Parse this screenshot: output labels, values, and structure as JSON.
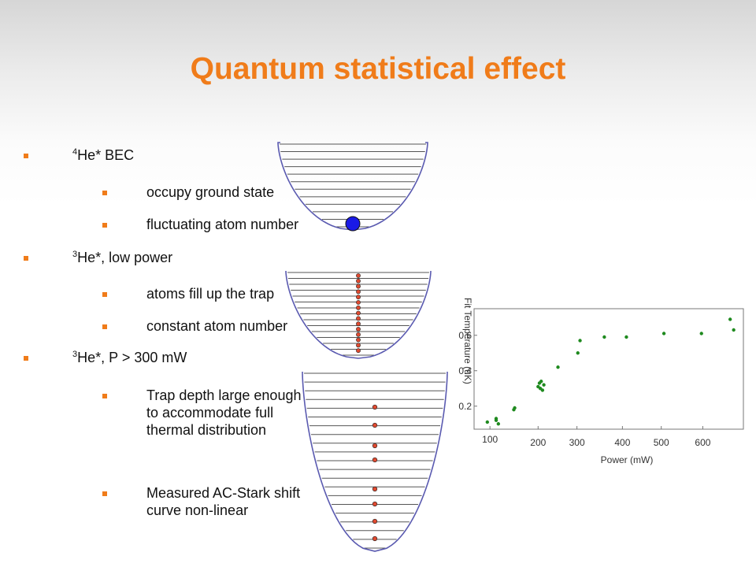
{
  "slide": {
    "title": "Quantum statistical effect"
  },
  "bullets": {
    "b1_sup": "4",
    "b1_text": "He* BEC",
    "b1_sub1": "occupy ground state",
    "b1_sub2": "fluctuating atom number",
    "b2_sup": "3",
    "b2_text": "He*, low power",
    "b2_sub1": "atoms fill up the trap",
    "b2_sub2": "constant atom number",
    "b3_sup": "3",
    "b3_text": "He*, P > 300 mW",
    "b3_sub1": "Trap depth large enough to accommodate full thermal distribution",
    "b3_sub2": "Measured AC-Stark shift curve non-linear"
  },
  "colors": {
    "accent": "#f07c1a",
    "trap_outline": "#5a5ab0",
    "bec_atom": "#1a1ae6",
    "fermion_atom": "#e04a30",
    "data_point": "#1f8a1f"
  },
  "chart_data": {
    "type": "scatter",
    "title": "",
    "xlabel": "Power (mW)",
    "ylabel": "Fit Temperature (uK)",
    "x_ticks": [
      "100",
      "200",
      "300",
      "400",
      "500",
      "600"
    ],
    "y_ticks": [
      "0.2",
      "0.4",
      "0.6"
    ],
    "grid": false,
    "series": [
      {
        "points": [
          [
            90,
            0.11
          ],
          [
            110,
            0.12
          ],
          [
            110,
            0.13
          ],
          [
            115,
            0.1
          ],
          [
            150,
            0.18
          ],
          [
            152,
            0.19
          ],
          [
            205,
            0.31
          ],
          [
            208,
            0.33
          ],
          [
            210,
            0.3
          ],
          [
            212,
            0.34
          ],
          [
            215,
            0.29
          ],
          [
            218,
            0.32
          ],
          [
            250,
            0.42
          ],
          [
            295,
            0.5
          ],
          [
            300,
            0.57
          ],
          [
            355,
            0.59
          ],
          [
            405,
            0.59
          ],
          [
            490,
            0.61
          ],
          [
            575,
            0.61
          ],
          [
            640,
            0.69
          ],
          [
            648,
            0.63
          ]
        ]
      }
    ]
  }
}
